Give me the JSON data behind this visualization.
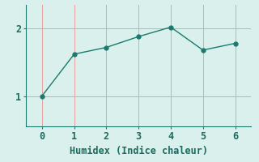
{
  "x": [
    0,
    1,
    2,
    3,
    4,
    5,
    6
  ],
  "y": [
    1.0,
    1.62,
    1.72,
    1.88,
    2.02,
    1.68,
    1.78
  ],
  "line_color": "#1a7a6e",
  "marker_color": "#1a7a6e",
  "bg_color": "#daf0ec",
  "grid_color": "#e8a0a0",
  "xlabel": "Humidex (Indice chaleur)",
  "xlim": [
    -0.5,
    6.5
  ],
  "ylim": [
    0.55,
    2.35
  ],
  "xticks": [
    0,
    1,
    2,
    3,
    4,
    5,
    6
  ],
  "yticks": [
    1,
    2
  ],
  "xlabel_fontsize": 8.5,
  "tick_fontsize": 8.5,
  "linewidth": 1.0,
  "markersize": 3.5
}
